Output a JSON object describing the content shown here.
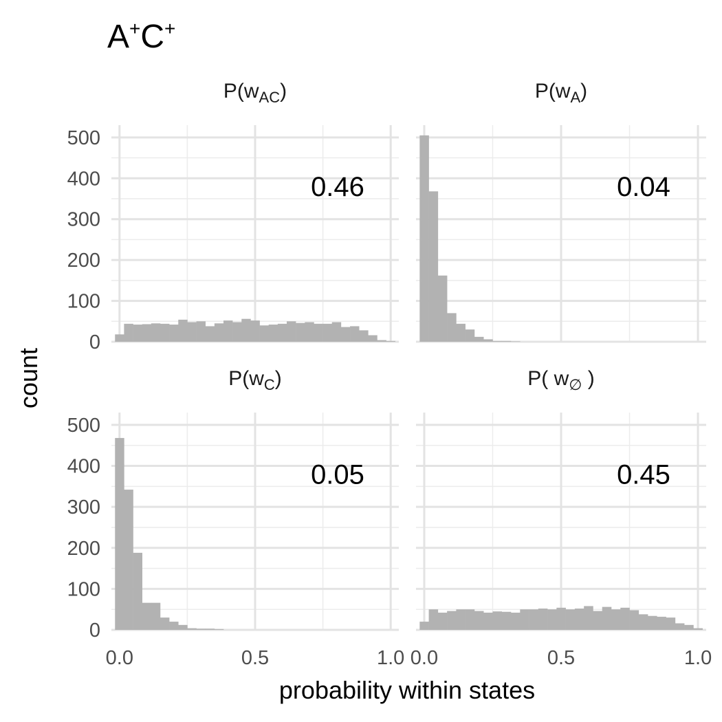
{
  "chart_data": {
    "type": "bar",
    "title": {
      "base": "A",
      "sup1": "+",
      "mid": "C",
      "sup2": "+"
    },
    "xlabel": "probability within states",
    "ylabel": "count",
    "xlim": [
      -0.03,
      1.03
    ],
    "ylim": [
      0,
      530
    ],
    "x_ticks": [
      "0.0",
      "0.5",
      "1.0"
    ],
    "x_tick_values": [
      0,
      0.5,
      1
    ],
    "y_ticks": [
      "0",
      "100",
      "200",
      "300",
      "400",
      "500"
    ],
    "y_tick_values": [
      0,
      100,
      200,
      300,
      400,
      500
    ],
    "grid": true,
    "bin_width": 0.0333,
    "bar_color": "#b2b2b2",
    "panels": [
      {
        "strip": {
          "pre": "P(w",
          "sub": "AC",
          "post": ")"
        },
        "annotation": "0.46",
        "bin_centers": [
          0,
          0.0333,
          0.0667,
          0.1,
          0.1333,
          0.1667,
          0.2,
          0.2333,
          0.2667,
          0.3,
          0.3333,
          0.3667,
          0.4,
          0.4333,
          0.4667,
          0.5,
          0.5333,
          0.5667,
          0.6,
          0.6333,
          0.6667,
          0.7,
          0.7333,
          0.7667,
          0.8,
          0.8333,
          0.8667,
          0.9,
          0.9333,
          0.9667,
          1.0
        ],
        "counts": [
          18,
          44,
          42,
          43,
          45,
          44,
          42,
          54,
          48,
          50,
          38,
          45,
          52,
          48,
          56,
          52,
          40,
          42,
          44,
          50,
          46,
          48,
          44,
          44,
          48,
          36,
          38,
          28,
          16,
          4,
          2
        ]
      },
      {
        "strip": {
          "pre": "P(w",
          "sub": "A",
          "post": ")"
        },
        "annotation": "0.04",
        "bin_centers": [
          0,
          0.0333,
          0.0667,
          0.1,
          0.1333,
          0.1667,
          0.2,
          0.2333,
          0.2667,
          0.3,
          0.3333
        ],
        "counts": [
          505,
          368,
          162,
          70,
          44,
          30,
          12,
          6,
          2,
          2,
          1
        ]
      },
      {
        "strip": {
          "pre": "P(w",
          "sub": "C",
          "post": ")"
        },
        "annotation": "0.05",
        "bin_centers": [
          0,
          0.0333,
          0.0667,
          0.1,
          0.1333,
          0.1667,
          0.2,
          0.2333,
          0.2667,
          0.3,
          0.3333,
          0.3667
        ],
        "counts": [
          468,
          342,
          188,
          66,
          66,
          30,
          20,
          12,
          4,
          3,
          3,
          2
        ]
      },
      {
        "strip": {
          "pre": "P( w",
          "sub": "∅",
          "post": " )"
        },
        "annotation": "0.45",
        "bin_centers": [
          0,
          0.0333,
          0.0667,
          0.1,
          0.1333,
          0.1667,
          0.2,
          0.2333,
          0.2667,
          0.3,
          0.3333,
          0.3667,
          0.4,
          0.4333,
          0.4667,
          0.5,
          0.5333,
          0.5667,
          0.6,
          0.6333,
          0.6667,
          0.7,
          0.7333,
          0.7667,
          0.8,
          0.8333,
          0.8667,
          0.9,
          0.9333,
          0.9667,
          1.0
        ],
        "counts": [
          20,
          50,
          42,
          46,
          50,
          50,
          46,
          42,
          45,
          44,
          42,
          50,
          50,
          52,
          50,
          54,
          50,
          52,
          58,
          46,
          56,
          50,
          54,
          48,
          38,
          34,
          32,
          30,
          16,
          12,
          4
        ]
      }
    ]
  }
}
